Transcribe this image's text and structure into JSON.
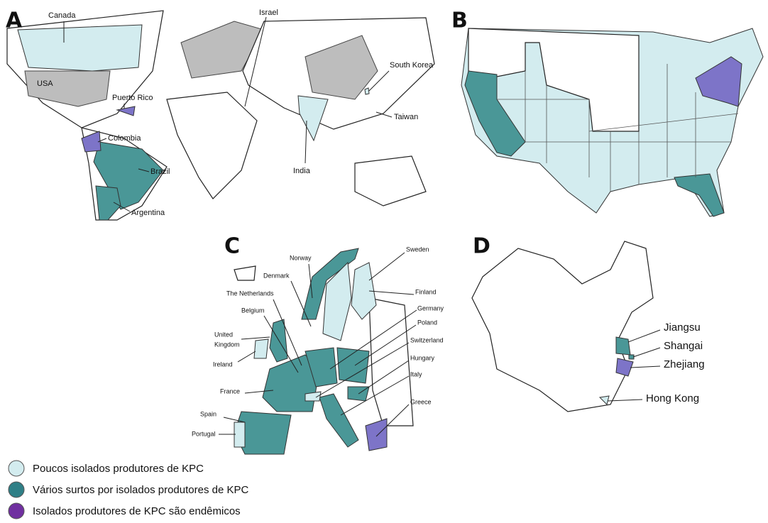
{
  "panels": [
    {
      "letter": "A",
      "labels": [
        "Canada",
        "USA",
        "Puerto Rico",
        "Colombia",
        "Brazil",
        "Argentina",
        "Israel",
        "India",
        "South Korea",
        "Taiwan"
      ]
    },
    {
      "letter": "B",
      "labels": []
    },
    {
      "letter": "C",
      "labels": [
        "Sweden",
        "Norway",
        "Denmark",
        "The Netherlands",
        "Belgium",
        "United",
        "Kingdom",
        "Ireland",
        "France",
        "Spain",
        "Portugal",
        "Finland",
        "Germany",
        "Poland",
        "Switzerland",
        "Hungary",
        "Italy",
        "Greece"
      ]
    },
    {
      "letter": "D",
      "labels": [
        "Jiangsu",
        "Shangai",
        "Zhejiang",
        "Hong Kong"
      ]
    }
  ],
  "legend": [
    "Poucos isolados produtores de KPC",
    "Vários surtos por isolados  produtores de KPC",
    "Isolados produtores de KPC são endêmicos"
  ]
}
